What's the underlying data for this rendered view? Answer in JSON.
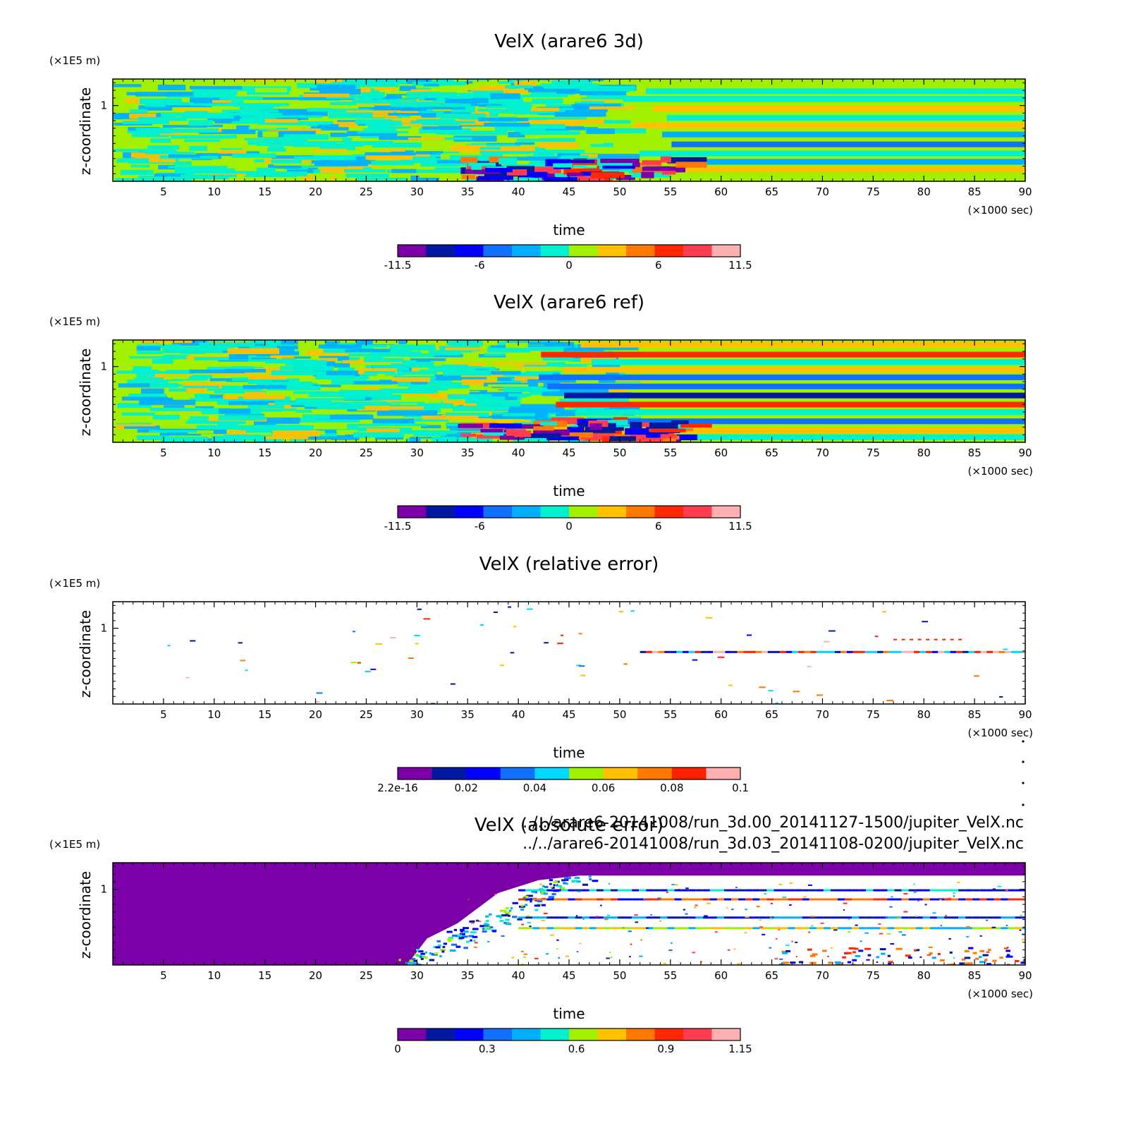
{
  "colormaps": {
    "velx": [
      "#7b00a8",
      "#0019a0",
      "#0000ff",
      "#1070ff",
      "#00b0ff",
      "#00f0d0",
      "#a0f000",
      "#ffc000",
      "#ff7800",
      "#ff2800",
      "#ff3c50",
      "#ffb0b0"
    ],
    "relerr": [
      "#7b00a8",
      "#0019a0",
      "#0000ff",
      "#1070ff",
      "#00d8ff",
      "#a0f000",
      "#ffc000",
      "#ff7800",
      "#ff2000",
      "#ffb0b0"
    ],
    "abserr": [
      "#7b00a8",
      "#0019a0",
      "#0000ff",
      "#1070ff",
      "#00b0ff",
      "#00f0d0",
      "#a0f000",
      "#ffc000",
      "#ff7800",
      "#ff2800",
      "#ff3c50",
      "#ffb0b0"
    ]
  },
  "footer_paths": [
    "../../arare6-20141008/run_3d.00_20141127-1500/jupiter_VelX.nc",
    "../../arare6-20141008/run_3d.03_20141108-0200/jupiter_VelX.nc"
  ],
  "chart_data": [
    {
      "type": "heatmap",
      "title": "VelX (arare6 3d)",
      "xlabel": "time",
      "xunit": "(×1000 sec)",
      "ylabel": "z-coordinate",
      "yunit": "(×1E5 m)",
      "xlim": [
        0,
        90
      ],
      "ylim": [
        0,
        1.35
      ],
      "xticks": [
        5,
        10,
        15,
        20,
        25,
        30,
        35,
        40,
        45,
        50,
        55,
        60,
        65,
        70,
        75,
        80,
        85,
        90
      ],
      "yticks": [
        1
      ],
      "colorbar": {
        "colormap": "velx",
        "ticks": [
          "-11.5",
          "-6",
          "0",
          "6",
          "11.5"
        ],
        "range": [
          -11.5,
          11.5
        ]
      },
      "mode": "velx3d"
    },
    {
      "type": "heatmap",
      "title": "VelX (arare6 ref)",
      "xlabel": "time",
      "xunit": "(×1000 sec)",
      "ylabel": "z-coordinate",
      "yunit": "(×1E5 m)",
      "xlim": [
        0,
        90
      ],
      "ylim": [
        0,
        1.35
      ],
      "xticks": [
        5,
        10,
        15,
        20,
        25,
        30,
        35,
        40,
        45,
        50,
        55,
        60,
        65,
        70,
        75,
        80,
        85,
        90
      ],
      "yticks": [
        1
      ],
      "colorbar": {
        "colormap": "velx",
        "ticks": [
          "-11.5",
          "-6",
          "0",
          "6",
          "11.5"
        ],
        "range": [
          -11.5,
          11.5
        ]
      },
      "mode": "velxref"
    },
    {
      "type": "heatmap",
      "title": "VelX (relative error)",
      "xlabel": "time",
      "xunit": "(×1000 sec)",
      "ylabel": "z-coordinate",
      "yunit": "(×1E5 m)",
      "xlim": [
        0,
        90
      ],
      "ylim": [
        0,
        1.35
      ],
      "xticks": [
        5,
        10,
        15,
        20,
        25,
        30,
        35,
        40,
        45,
        50,
        55,
        60,
        65,
        70,
        75,
        80,
        85,
        90
      ],
      "yticks": [
        1
      ],
      "colorbar": {
        "colormap": "relerr",
        "ticks": [
          "2.2e-16",
          "0.02",
          "0.04",
          "0.06",
          "0.08",
          "0.1"
        ],
        "range": [
          0,
          0.1
        ]
      },
      "mode": "relerr"
    },
    {
      "type": "heatmap",
      "title": "VelX (absolute error)",
      "xlabel": "time",
      "xunit": "(×1000 sec)",
      "ylabel": "z-coordinate",
      "yunit": "(×1E5 m)",
      "xlim": [
        0,
        90
      ],
      "ylim": [
        0,
        1.35
      ],
      "xticks": [
        5,
        10,
        15,
        20,
        25,
        30,
        35,
        40,
        45,
        50,
        55,
        60,
        65,
        70,
        75,
        80,
        85,
        90
      ],
      "yticks": [
        1
      ],
      "colorbar": {
        "colormap": "abserr",
        "ticks": [
          "0",
          "0.3",
          "0.6",
          "0.9",
          "1.15"
        ],
        "range": [
          0,
          1.15
        ]
      },
      "mode": "abserr"
    }
  ]
}
